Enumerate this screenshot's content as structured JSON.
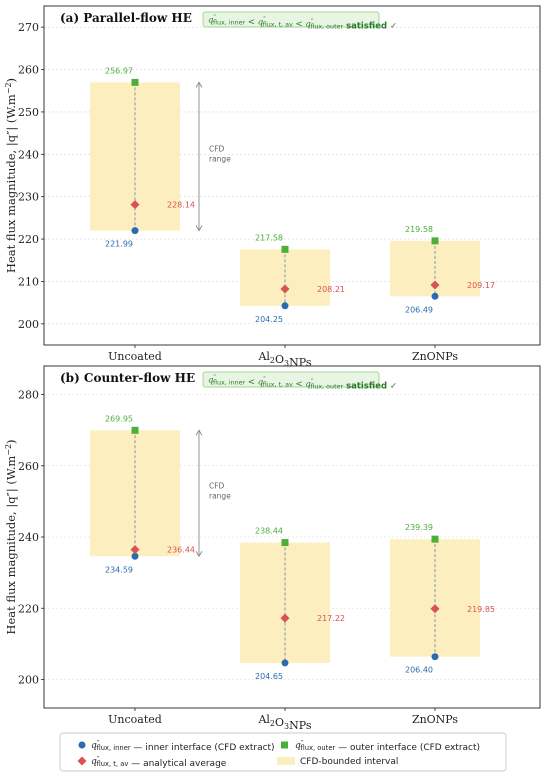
{
  "colors": {
    "inner": "#2b6cb0",
    "outer": "#4caf3a",
    "average": "#d9534f",
    "interval": "#fdeec0",
    "satisfied_bg": "#e8f5e2",
    "satisfied_border": "#86c77a"
  },
  "chart_data": [
    {
      "type": "scatter",
      "panel_title": "(a)  Parallel-flow HE",
      "ylabel_main": "Heat flux magnitude, |q″| (W.m",
      "ylabel_exp": "−2",
      "ylabel_close": ")",
      "ylim": [
        195,
        275
      ],
      "yticks": [
        200,
        210,
        220,
        230,
        240,
        250,
        260,
        270
      ],
      "categories": [
        {
          "pre": "Uncoated",
          "sub": "",
          "post": ""
        },
        {
          "pre": "Al",
          "sub": "2",
          "pre2": "O",
          "sub2": "3",
          "post": "NPs"
        },
        {
          "pre": "ZnONPs",
          "sub": "",
          "post": ""
        }
      ],
      "series": [
        {
          "key": "inner",
          "values": [
            221.99,
            204.25,
            206.49
          ],
          "labels": [
            "221.99",
            "204.25",
            "206.49"
          ]
        },
        {
          "key": "outer",
          "values": [
            256.97,
            217.58,
            219.58
          ],
          "labels": [
            "256.97",
            "217.58",
            "219.58"
          ]
        },
        {
          "key": "average",
          "values": [
            228.14,
            208.21,
            209.17
          ],
          "labels": [
            "228.14",
            "208.21",
            "209.17"
          ]
        }
      ],
      "range_annotation": {
        "line1": "CFD",
        "line2": "range"
      },
      "satisfied": "satisfied ✓",
      "grid": true
    },
    {
      "type": "scatter",
      "panel_title": "(b)  Counter-flow HE",
      "ylabel_main": "Heat flux magnitude, |q″| (W.m",
      "ylabel_exp": "−2",
      "ylabel_close": ")",
      "ylim": [
        192,
        288
      ],
      "yticks": [
        200,
        220,
        240,
        260,
        280
      ],
      "categories": [
        {
          "pre": "Uncoated",
          "sub": "",
          "post": ""
        },
        {
          "pre": "Al",
          "sub": "2",
          "pre2": "O",
          "sub2": "3",
          "post": "NPs"
        },
        {
          "pre": "ZnONPs",
          "sub": "",
          "post": ""
        }
      ],
      "series": [
        {
          "key": "inner",
          "values": [
            234.59,
            204.65,
            206.4
          ],
          "labels": [
            "234.59",
            "204.65",
            "206.40"
          ]
        },
        {
          "key": "outer",
          "values": [
            269.95,
            238.44,
            239.39
          ],
          "labels": [
            "269.95",
            "238.44",
            "239.39"
          ]
        },
        {
          "key": "average",
          "values": [
            236.44,
            217.22,
            219.85
          ],
          "labels": [
            "236.44",
            "217.22",
            "219.85"
          ]
        }
      ],
      "range_annotation": {
        "line1": "CFD",
        "line2": "range"
      },
      "satisfied": "satisfied ✓",
      "grid": true
    }
  ],
  "legend": {
    "inner_text": "— inner interface (CFD extract)",
    "outer_text": "— outer interface (CFD extract)",
    "average_text": "— analytical average",
    "interval_text": "CFD-bounded interval",
    "q_sym": "q",
    "q_sup": "″",
    "sub_inner": "flux, inner",
    "sub_outer": "flux, outer",
    "sub_av": "flux, t, av"
  }
}
